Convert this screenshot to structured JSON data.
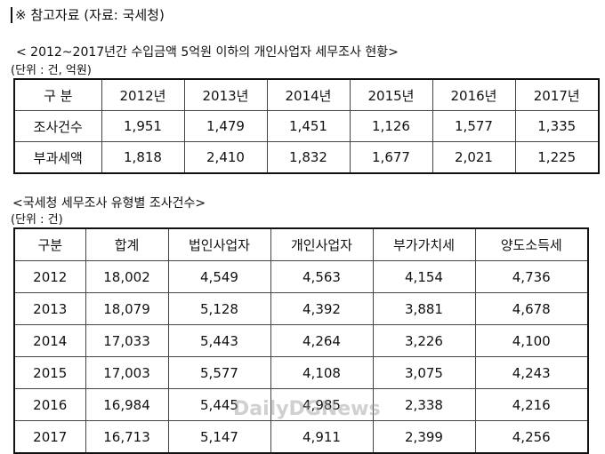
{
  "header": {
    "title": "※ 참고자료 (자료: 국세청)"
  },
  "table1": {
    "title": "< 2012~2017년간 수입금액 5억원 이하의 개인사업자 세무조사 현황>",
    "unit": "(단위 : 건, 억원)",
    "columns": [
      "구  분",
      "2012년",
      "2013년",
      "2014년",
      "2015년",
      "2016년",
      "2017년"
    ],
    "rows": [
      [
        "조사건수",
        "1,951",
        "1,479",
        "1,451",
        "1,126",
        "1,577",
        "1,335"
      ],
      [
        "부과세액",
        "1,818",
        "2,410",
        "1,832",
        "1,677",
        "2,021",
        "1,225"
      ]
    ]
  },
  "table2": {
    "title": "<국세청 세무조사 유형별 조사건수>",
    "unit": "(단위 : 건)",
    "columns": [
      "구분",
      "합계",
      "법인사업자",
      "개인사업자",
      "부가가치세",
      "양도소득세"
    ],
    "rows": [
      [
        "2012",
        "18,002",
        "4,549",
        "4,563",
        "4,154",
        "4,736"
      ],
      [
        "2013",
        "18,079",
        "5,128",
        "4,392",
        "3,881",
        "4,678"
      ],
      [
        "2014",
        "17,033",
        "5,443",
        "4,264",
        "3,226",
        "4,100"
      ],
      [
        "2015",
        "17,003",
        "5,577",
        "4,108",
        "3,075",
        "4,243"
      ],
      [
        "2016",
        "16,984",
        "5,445",
        "4,985",
        "2,338",
        "4,216"
      ],
      [
        "2017",
        "16,713",
        "5,147",
        "4,911",
        "2,399",
        "4,256"
      ]
    ]
  },
  "watermark": "DailyDGNews"
}
